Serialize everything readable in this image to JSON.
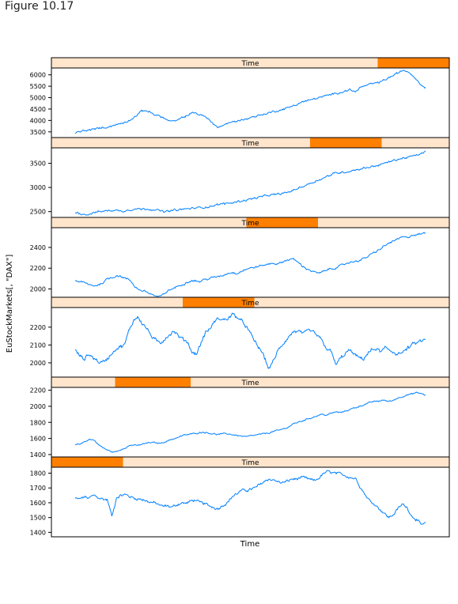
{
  "figure_title": "Figure 10.17",
  "colors": {
    "strip_background": "#ffe5cc",
    "strip_highlight": "#ff7f00",
    "line": "#0080ff",
    "axis": "#000000"
  },
  "chart_data": {
    "type": "line",
    "layout": "vertical stack of 6 panels (trellis/equal.count shingles)",
    "xlabel": "Time",
    "ylabel": "EuStockMarkets[, \"DAX\"]",
    "strip_label": "Time",
    "panels": [
      {
        "strip": "Time",
        "shingle_range": [
          0.0,
          0.18
        ],
        "ylim": [
          1370,
          1840
        ],
        "yticks": [
          1400,
          1500,
          1600,
          1700,
          1800
        ],
        "trend": [
          1628,
          1625,
          1640,
          1630,
          1650,
          1635,
          1625,
          1620,
          1505,
          1640,
          1650,
          1655,
          1640,
          1630,
          1625,
          1620,
          1605,
          1600,
          1590,
          1575,
          1580,
          1570,
          1585,
          1600,
          1595,
          1610,
          1620,
          1600,
          1595,
          1580,
          1570,
          1560,
          1585,
          1600,
          1640,
          1660,
          1680,
          1685,
          1690,
          1700,
          1720,
          1745,
          1760,
          1755,
          1740,
          1735,
          1745,
          1760,
          1760,
          1770,
          1765,
          1755,
          1750,
          1770,
          1800,
          1810,
          1800,
          1795,
          1790,
          1780,
          1770,
          1760,
          1700,
          1650,
          1610,
          1590,
          1560,
          1530,
          1500,
          1520,
          1560,
          1590,
          1570,
          1510,
          1490,
          1450,
          1460
        ],
        "noise": 14
      },
      {
        "strip": "Time",
        "shingle_range": [
          0.16,
          0.35
        ],
        "ylim": [
          1370,
          2235
        ],
        "yticks": [
          1400,
          1600,
          1800,
          2000,
          2200
        ],
        "trend": [
          1520,
          1530,
          1560,
          1590,
          1580,
          1520,
          1480,
          1450,
          1430,
          1440,
          1470,
          1500,
          1520,
          1510,
          1525,
          1540,
          1550,
          1545,
          1540,
          1560,
          1580,
          1600,
          1620,
          1640,
          1650,
          1660,
          1670,
          1680,
          1670,
          1660,
          1650,
          1655,
          1660,
          1650,
          1640,
          1630,
          1620,
          1630,
          1640,
          1650,
          1660,
          1670,
          1690,
          1700,
          1720,
          1740,
          1780,
          1800,
          1820,
          1840,
          1860,
          1880,
          1900,
          1890,
          1910,
          1930,
          1920,
          1940,
          1960,
          1980,
          2000,
          2020,
          2040,
          2060,
          2060,
          2080,
          2060,
          2070,
          2100,
          2120,
          2140,
          2150,
          2170,
          2160,
          2140
        ],
        "noise": 12
      },
      {
        "strip": "Time",
        "shingle_range": [
          0.33,
          0.51
        ],
        "ylim": [
          1920,
          2310
        ],
        "yticks": [
          2000,
          2100,
          2200
        ],
        "trend": [
          2070,
          2040,
          2020,
          2050,
          2030,
          2010,
          2000,
          2020,
          2050,
          2080,
          2090,
          2100,
          2180,
          2240,
          2260,
          2220,
          2190,
          2150,
          2120,
          2110,
          2140,
          2160,
          2180,
          2150,
          2130,
          2120,
          2060,
          2050,
          2110,
          2170,
          2190,
          2230,
          2250,
          2240,
          2250,
          2270,
          2260,
          2230,
          2210,
          2160,
          2120,
          2080,
          2040,
          1970,
          2000,
          2060,
          2100,
          2130,
          2160,
          2180,
          2170,
          2160,
          2180,
          2170,
          2150,
          2120,
          2080,
          2060,
          1990,
          2020,
          2050,
          2070,
          2050,
          2030,
          2020,
          2050,
          2070,
          2080,
          2060,
          2080,
          2070,
          2060,
          2050,
          2060,
          2080,
          2100,
          2110,
          2120,
          2130
        ],
        "noise": 16
      },
      {
        "strip": "Time",
        "shingle_range": [
          0.49,
          0.67
        ],
        "ylim": [
          1920,
          2590
        ],
        "yticks": [
          2000,
          2200,
          2400
        ],
        "trend": [
          2080,
          2070,
          2060,
          2040,
          2030,
          2040,
          2060,
          2100,
          2110,
          2130,
          2120,
          2100,
          2080,
          2020,
          1990,
          1980,
          1960,
          1940,
          1920,
          1940,
          1980,
          2000,
          2020,
          2040,
          2060,
          2080,
          2080,
          2070,
          2090,
          2100,
          2110,
          2120,
          2130,
          2150,
          2160,
          2150,
          2170,
          2190,
          2200,
          2210,
          2220,
          2230,
          2240,
          2250,
          2240,
          2260,
          2280,
          2290,
          2270,
          2230,
          2200,
          2180,
          2160,
          2150,
          2170,
          2190,
          2200,
          2210,
          2230,
          2250,
          2260,
          2270,
          2280,
          2300,
          2330,
          2350,
          2380,
          2410,
          2440,
          2460,
          2480,
          2500,
          2490,
          2520,
          2520,
          2530,
          2540
        ],
        "noise": 14
      },
      {
        "strip": "Time",
        "shingle_range": [
          0.65,
          0.83
        ],
        "ylim": [
          2380,
          3820
        ],
        "yticks": [
          2500,
          3000,
          3500
        ],
        "trend": [
          2480,
          2470,
          2440,
          2450,
          2480,
          2500,
          2510,
          2520,
          2530,
          2520,
          2510,
          2530,
          2550,
          2560,
          2550,
          2560,
          2550,
          2540,
          2510,
          2500,
          2510,
          2530,
          2540,
          2550,
          2560,
          2570,
          2580,
          2590,
          2600,
          2620,
          2640,
          2660,
          2670,
          2680,
          2700,
          2720,
          2740,
          2760,
          2780,
          2800,
          2820,
          2840,
          2850,
          2860,
          2880,
          2900,
          2940,
          2980,
          3020,
          3060,
          3100,
          3140,
          3180,
          3220,
          3260,
          3300,
          3310,
          3320,
          3340,
          3360,
          3380,
          3400,
          3420,
          3440,
          3460,
          3490,
          3520,
          3550,
          3580,
          3600,
          3620,
          3640,
          3660,
          3700,
          3740
        ],
        "noise": 30
      },
      {
        "strip": "Time",
        "shingle_range": [
          0.82,
          1.0
        ],
        "ylim": [
          3250,
          6300
        ],
        "yticks": [
          3500,
          4000,
          4500,
          5000,
          5500,
          6000
        ],
        "trend": [
          3450,
          3500,
          3550,
          3580,
          3600,
          3650,
          3680,
          3700,
          3750,
          3800,
          3850,
          3900,
          4000,
          4100,
          4250,
          4400,
          4450,
          4350,
          4250,
          4200,
          4100,
          4000,
          3950,
          4000,
          4100,
          4200,
          4300,
          4350,
          4250,
          4200,
          4050,
          3900,
          3700,
          3750,
          3850,
          3900,
          3950,
          4000,
          4050,
          4100,
          4150,
          4200,
          4250,
          4300,
          4350,
          4400,
          4450,
          4500,
          4550,
          4650,
          4700,
          4800,
          4850,
          4900,
          4950,
          5000,
          5050,
          5100,
          5150,
          5200,
          5250,
          5300,
          5350,
          5250,
          5400,
          5500,
          5550,
          5600,
          5650,
          5700,
          5800,
          5900,
          6000,
          6100,
          6200,
          6150,
          6000,
          5800,
          5550,
          5450
        ],
        "noise": 60
      }
    ]
  }
}
